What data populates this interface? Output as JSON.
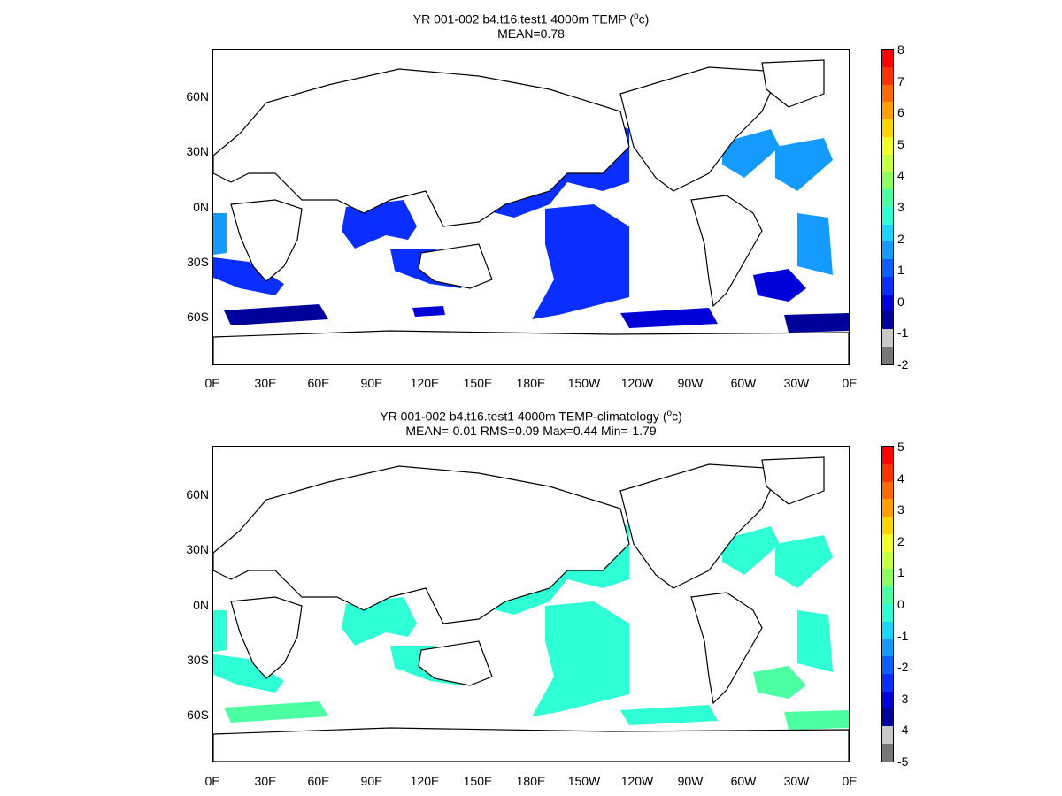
{
  "panels": [
    {
      "title_line1": "YR 001-002 b4.t16.test1 4000m TEMP (",
      "title_sup": "o",
      "title_end": "c)",
      "title_line2": "MEAN=0.78",
      "y_ticks": [
        "60N",
        "30N",
        "0N",
        "30S",
        "60S"
      ],
      "x_ticks": [
        "0E",
        "30E",
        "60E",
        "90E",
        "120E",
        "150E",
        "180E",
        "150W",
        "120W",
        "90W",
        "60W",
        "30W",
        "0E"
      ],
      "colorbar": {
        "labels": [
          "8",
          "7",
          "6",
          "5",
          "4",
          "3",
          "2",
          "1",
          "0",
          "-1",
          "-2"
        ],
        "colors": [
          "#ff0000",
          "#ff3200",
          "#ff6a00",
          "#ff9f00",
          "#ffd500",
          "#f0ff2a",
          "#c7ff45",
          "#8dff62",
          "#4dffa3",
          "#2fffd5",
          "#1ad6ff",
          "#159bff",
          "#0e5fff",
          "#0a2eff",
          "#0000d8",
          "#00009a",
          "#c8c8c8",
          "#777777"
        ]
      }
    },
    {
      "title_line1": "YR 001-002 b4.t16.test1 4000m TEMP-climatology (",
      "title_sup": "o",
      "title_end": "c)",
      "title_line2": "MEAN=-0.01   RMS=0.09   Max=0.44   Min=-1.79",
      "y_ticks": [
        "60N",
        "30N",
        "0N",
        "30S",
        "60S"
      ],
      "x_ticks": [
        "0E",
        "30E",
        "60E",
        "90E",
        "120E",
        "150E",
        "180E",
        "150W",
        "120W",
        "90W",
        "60W",
        "30W",
        "0E"
      ],
      "colorbar": {
        "labels": [
          "5",
          "4",
          "3",
          "2",
          "1",
          "0",
          "-1",
          "-2",
          "-3",
          "-4",
          "-5"
        ],
        "colors": [
          "#ff0000",
          "#ff3200",
          "#ff6a00",
          "#ff9f00",
          "#ffd500",
          "#f0ff2a",
          "#c7ff45",
          "#8dff62",
          "#4dffa3",
          "#2fffd5",
          "#1ad6ff",
          "#159bff",
          "#0e5fff",
          "#0a2eff",
          "#0000d8",
          "#00009a",
          "#c8c8c8",
          "#777777"
        ]
      }
    }
  ]
}
